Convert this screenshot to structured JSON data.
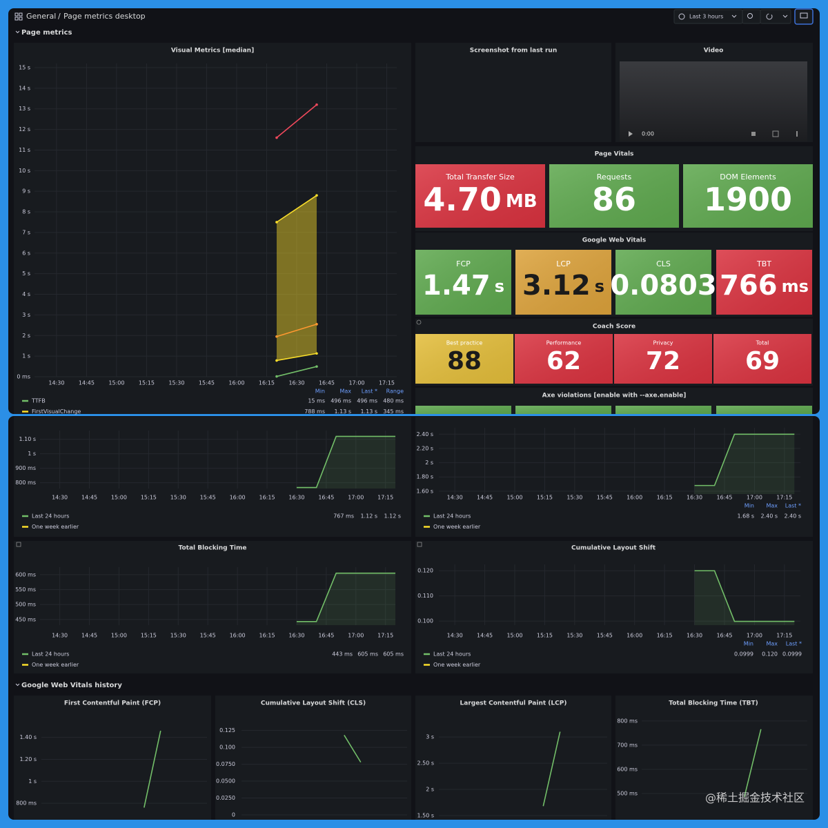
{
  "header": {
    "crumbs": [
      "General",
      "Page metrics desktop"
    ],
    "time_range": "Last 3 hours"
  },
  "rows": [
    "Page metrics",
    "Google Web Vitals history"
  ],
  "panels": {
    "screenshot": {
      "title": "Screenshot from last run"
    },
    "video": {
      "title": "Video",
      "time": "0:00"
    }
  },
  "stat_groups": [
    {
      "title": "Page Vitals",
      "items": [
        {
          "label": "Total Transfer Size",
          "value": "4.70",
          "unit": "MB",
          "color": "#d9323f"
        },
        {
          "label": "Requests",
          "value": "86",
          "color": "#5ea84e"
        },
        {
          "label": "DOM Elements",
          "value": "1900",
          "color": "#5ea84e"
        }
      ]
    },
    {
      "title": "Google Web Vitals",
      "items": [
        {
          "label": "FCP",
          "value": "1.47",
          "unit": "s",
          "color": "#5ea84e"
        },
        {
          "label": "LCP",
          "value": "3.12",
          "unit": "s",
          "color": "#dca23b"
        },
        {
          "label": "CLS",
          "value": "0.0803",
          "color": "#5ea84e"
        },
        {
          "label": "TBT",
          "value": "766",
          "unit": "ms",
          "color": "#d9323f"
        }
      ]
    },
    {
      "title": "Coach Score",
      "items": [
        {
          "label": "Best practice",
          "value": "88",
          "color": "#e3bd3a"
        },
        {
          "label": "Performance",
          "value": "62",
          "color": "#d9323f"
        },
        {
          "label": "Privacy",
          "value": "72",
          "color": "#d9323f"
        },
        {
          "label": "Total",
          "value": "69",
          "color": "#d9323f"
        }
      ]
    },
    {
      "title": "Axe violations [enable with --axe.enable]",
      "items": [
        {
          "color": "#5ea84e"
        },
        {
          "color": "#5ea84e"
        },
        {
          "color": "#5ea84e"
        },
        {
          "color": "#5ea84e"
        }
      ]
    }
  ],
  "charts": [
    {
      "type": "line",
      "title": "Visual Metrics [median]",
      "grid": true,
      "xlim": [
        859,
        1040
      ],
      "xticks": [
        {
          "value": 870,
          "label": "14:30"
        },
        {
          "value": 885,
          "label": "14:45"
        },
        {
          "value": 900,
          "label": "15:00"
        },
        {
          "value": 915,
          "label": "15:15"
        },
        {
          "value": 930,
          "label": "15:30"
        },
        {
          "value": 945,
          "label": "15:45"
        },
        {
          "value": 960,
          "label": "16:00"
        },
        {
          "value": 975,
          "label": "16:15"
        },
        {
          "value": 990,
          "label": "16:30"
        },
        {
          "value": 1005,
          "label": "16:45"
        },
        {
          "value": 1020,
          "label": "17:00"
        },
        {
          "value": 1035,
          "label": "17:15"
        }
      ],
      "ylim": [
        0,
        15.2
      ],
      "yticks": [
        {
          "value": 0,
          "label": "0 ms"
        },
        {
          "value": 1,
          "label": "1 s"
        },
        {
          "value": 2,
          "label": "2 s"
        },
        {
          "value": 3,
          "label": "3 s"
        },
        {
          "value": 4,
          "label": "4 s"
        },
        {
          "value": 5,
          "label": "5 s"
        },
        {
          "value": 6,
          "label": "6 s"
        },
        {
          "value": 7,
          "label": "7 s"
        },
        {
          "value": 8,
          "label": "8 s"
        },
        {
          "value": 9,
          "label": "9 s"
        },
        {
          "value": 10,
          "label": "10 s"
        },
        {
          "value": 11,
          "label": "11 s"
        },
        {
          "value": 12,
          "label": "12 s"
        },
        {
          "value": 13,
          "label": "13 s"
        },
        {
          "value": 14,
          "label": "14 s"
        },
        {
          "value": 15,
          "label": "15 s"
        }
      ],
      "stat_headers": [
        "Min",
        "Max",
        "Last *",
        "Range"
      ],
      "points": true,
      "series": [
        {
          "name": "TTFB",
          "color": "#73bf69",
          "x": [
            980,
            1000
          ],
          "values": [
            0.015,
            0.496
          ],
          "stats": [
            "15 ms",
            "496 ms",
            "496 ms",
            "480 ms"
          ]
        },
        {
          "color": "#fade2a",
          "x": [
            980,
            1000
          ],
          "values": [
            7.5,
            8.8
          ],
          "fill": true
        },
        {
          "name": "FirstVisualChange",
          "color": "#fade2a",
          "x": [
            980,
            1000
          ],
          "values": [
            0.788,
            1.13
          ],
          "stats": [
            "788 ms",
            "1.13 s",
            "1.13 s",
            "345 ms"
          ]
        },
        {
          "color": "#ff9830",
          "x": [
            980,
            1000
          ],
          "values": [
            1.95,
            2.55
          ]
        },
        {
          "color": "#f2495c",
          "x": [
            980,
            1000
          ],
          "values": [
            11.6,
            13.2
          ]
        }
      ]
    },
    {
      "type": "line",
      "grid": true,
      "xlim": [
        860,
        1040
      ],
      "xticks": [
        {
          "value": 870,
          "label": "14:30"
        },
        {
          "value": 885,
          "label": "14:45"
        },
        {
          "value": 900,
          "label": "15:00"
        },
        {
          "value": 915,
          "label": "15:15"
        },
        {
          "value": 930,
          "label": "15:30"
        },
        {
          "value": 945,
          "label": "15:45"
        },
        {
          "value": 960,
          "label": "16:00"
        },
        {
          "value": 975,
          "label": "16:15"
        },
        {
          "value": 990,
          "label": "16:30"
        },
        {
          "value": 1005,
          "label": "16:45"
        },
        {
          "value": 1020,
          "label": "17:00"
        },
        {
          "value": 1035,
          "label": "17:15"
        }
      ],
      "ylim": [
        0.76,
        1.16
      ],
      "yticks": [
        {
          "value": 0.8,
          "label": "800 ms"
        },
        {
          "value": 0.9,
          "label": "900 ms"
        },
        {
          "value": 1,
          "label": "1 s"
        },
        {
          "value": 1.1,
          "label": "1.10 s"
        }
      ],
      "series": [
        {
          "name": "Last 24 hours",
          "color": "#73bf69",
          "x": [
            990,
            1000,
            1010,
            1040
          ],
          "values": [
            0.767,
            0.767,
            1.12,
            1.12
          ],
          "fill": true,
          "stats": [
            "767 ms",
            "1.12 s",
            "1.12 s"
          ]
        },
        {
          "name": "One week earlier",
          "color": "#fade2a",
          "x": [],
          "values": []
        }
      ]
    },
    {
      "type": "line",
      "grid": true,
      "xlim": [
        862,
        1043
      ],
      "xticks": [
        {
          "value": 870,
          "label": "14:30"
        },
        {
          "value": 885,
          "label": "14:45"
        },
        {
          "value": 900,
          "label": "15:00"
        },
        {
          "value": 915,
          "label": "15:15"
        },
        {
          "value": 930,
          "label": "15:30"
        },
        {
          "value": 945,
          "label": "15:45"
        },
        {
          "value": 960,
          "label": "16:00"
        },
        {
          "value": 975,
          "label": "16:15"
        },
        {
          "value": 990,
          "label": "16:30"
        },
        {
          "value": 1005,
          "label": "16:45"
        },
        {
          "value": 1020,
          "label": "17:00"
        },
        {
          "value": 1035,
          "label": "17:15"
        }
      ],
      "ylim": [
        1.56,
        2.49
      ],
      "yticks": [
        {
          "value": 1.6,
          "label": "1.60 s"
        },
        {
          "value": 1.8,
          "label": "1.80 s"
        },
        {
          "value": 2,
          "label": "2 s"
        },
        {
          "value": 2.2,
          "label": "2.20 s"
        },
        {
          "value": 2.4,
          "label": "2.40 s"
        }
      ],
      "stat_headers": [
        "Min",
        "Max",
        "Last *"
      ],
      "series": [
        {
          "name": "Last 24 hours",
          "color": "#73bf69",
          "x": [
            990,
            1000,
            1010,
            1040
          ],
          "values": [
            1.68,
            1.68,
            2.4,
            2.4
          ],
          "fill": true,
          "stats": [
            "1.68 s",
            "2.40 s",
            "2.40 s"
          ]
        },
        {
          "name": "One week earlier",
          "color": "#fade2a",
          "x": [],
          "values": []
        }
      ]
    },
    {
      "type": "line",
      "title": "Total Blocking Time",
      "grid": true,
      "xlim": [
        860,
        1040
      ],
      "xticks": [
        {
          "value": 870,
          "label": "14:30"
        },
        {
          "value": 885,
          "label": "14:45"
        },
        {
          "value": 900,
          "label": "15:00"
        },
        {
          "value": 915,
          "label": "15:15"
        },
        {
          "value": 930,
          "label": "15:30"
        },
        {
          "value": 945,
          "label": "15:45"
        },
        {
          "value": 960,
          "label": "16:00"
        },
        {
          "value": 975,
          "label": "16:15"
        },
        {
          "value": 990,
          "label": "16:30"
        },
        {
          "value": 1005,
          "label": "16:45"
        },
        {
          "value": 1020,
          "label": "17:00"
        },
        {
          "value": 1035,
          "label": "17:15"
        }
      ],
      "ylim": [
        431,
        625
      ],
      "yticks": [
        {
          "value": 450,
          "label": "450 ms"
        },
        {
          "value": 500,
          "label": "500 ms"
        },
        {
          "value": 550,
          "label": "550 ms"
        },
        {
          "value": 600,
          "label": "600 ms"
        }
      ],
      "series": [
        {
          "name": "Last 24 hours",
          "color": "#73bf69",
          "x": [
            990,
            1000,
            1010,
            1040
          ],
          "values": [
            443,
            443,
            605,
            605
          ],
          "fill": true,
          "stats": [
            "443 ms",
            "605 ms",
            "605 ms"
          ]
        },
        {
          "name": "One week earlier",
          "color": "#fade2a",
          "x": [],
          "values": []
        }
      ]
    },
    {
      "type": "line",
      "title": "Cumulative Layout Shift",
      "grid": true,
      "xlim": [
        862,
        1043
      ],
      "xticks": [
        {
          "value": 870,
          "label": "14:30"
        },
        {
          "value": 885,
          "label": "14:45"
        },
        {
          "value": 900,
          "label": "15:00"
        },
        {
          "value": 915,
          "label": "15:15"
        },
        {
          "value": 930,
          "label": "15:30"
        },
        {
          "value": 945,
          "label": "15:45"
        },
        {
          "value": 960,
          "label": "16:00"
        },
        {
          "value": 975,
          "label": "16:15"
        },
        {
          "value": 990,
          "label": "16:30"
        },
        {
          "value": 1005,
          "label": "16:45"
        },
        {
          "value": 1020,
          "label": "17:00"
        },
        {
          "value": 1035,
          "label": "17:15"
        }
      ],
      "ylim": [
        0.0984,
        0.1225
      ],
      "yticks": [
        {
          "value": 0.1,
          "label": "0.100"
        },
        {
          "value": 0.11,
          "label": "0.110"
        },
        {
          "value": 0.12,
          "label": "0.120"
        }
      ],
      "stat_headers": [
        "Min",
        "Max",
        "Last *"
      ],
      "series": [
        {
          "name": "Last 24 hours",
          "color": "#73bf69",
          "x": [
            990,
            1000,
            1010,
            1040
          ],
          "values": [
            0.12,
            0.12,
            0.0999,
            0.0999
          ],
          "fill": true,
          "stats": [
            "0.0999",
            "0.120",
            "0.0999"
          ]
        },
        {
          "name": "One week earlier",
          "color": "#fade2a",
          "x": [],
          "values": []
        }
      ]
    },
    {
      "type": "line",
      "title": "First Contentful Paint (FCP)",
      "grid": true,
      "ylim": [
        0.7,
        1.58
      ],
      "yticks": [
        {
          "value": 0.8,
          "label": "800 ms"
        },
        {
          "value": 1,
          "label": "1 s"
        },
        {
          "value": 1.2,
          "label": "1.20 s"
        },
        {
          "value": 1.4,
          "label": "1.40 s"
        }
      ],
      "series": [
        {
          "color": "#73bf69",
          "values": [
            0.76,
            1.46
          ]
        }
      ]
    },
    {
      "type": "line",
      "title": "Cumulative Layout Shift (CLS)",
      "grid": true,
      "ylim": [
        0,
        0.144
      ],
      "yticks": [
        0,
        {
          "value": 0.025,
          "label": "0.0250"
        },
        {
          "value": 0.05,
          "label": "0.0500"
        },
        {
          "value": 0.075,
          "label": "0.0750"
        },
        {
          "value": 0.1,
          "label": "0.100"
        },
        0.125
      ],
      "series": [
        {
          "color": "#73bf69",
          "values": [
            0.118,
            0.078
          ]
        }
      ]
    },
    {
      "type": "line",
      "title": "Largest Contentful Paint (LCP)",
      "grid": true,
      "ylim": [
        1.5,
        3.37
      ],
      "yticks": [
        {
          "value": 1.5,
          "label": "1.50 s"
        },
        {
          "value": 2,
          "label": "2 s"
        },
        {
          "value": 2.5,
          "label": "2.50 s"
        },
        {
          "value": 3,
          "label": "3 s"
        }
      ],
      "series": [
        {
          "color": "#73bf69",
          "values": [
            1.68,
            3.1
          ]
        }
      ]
    },
    {
      "type": "line",
      "title": "Total Blocking Time (TBT)",
      "grid": true,
      "ylim": [
        400,
        814
      ],
      "yticks": [
        {
          "value": 500,
          "label": "500 ms"
        },
        {
          "value": 600,
          "label": "600 ms"
        },
        {
          "value": 700,
          "label": "700 ms"
        },
        {
          "value": 800,
          "label": "800 ms"
        }
      ],
      "series": [
        {
          "color": "#73bf69",
          "values": [
            486,
            766
          ]
        }
      ]
    }
  ],
  "watermark": "@稀土掘金技术社区"
}
